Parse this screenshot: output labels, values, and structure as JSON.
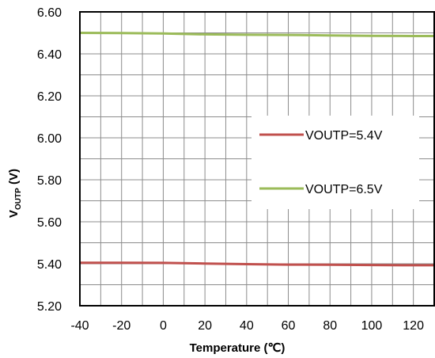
{
  "chart_data": {
    "type": "line",
    "xlabel": "Temperature (℃)",
    "ylabel_main": "V",
    "ylabel_sub": "OUTP",
    "ylabel_unit": " (V)",
    "xlim": [
      -40,
      130
    ],
    "ylim": [
      5.2,
      6.6
    ],
    "x_ticks": [
      -40,
      -20,
      0,
      20,
      40,
      60,
      80,
      100,
      120
    ],
    "y_ticks": [
      "5.20",
      "5.40",
      "5.60",
      "5.80",
      "6.00",
      "6.20",
      "6.40",
      "6.60"
    ],
    "grid": true,
    "legend_position": "right-middle",
    "series": [
      {
        "name": "VOUTP=5.4V",
        "color": "#c0504d",
        "x": [
          -40,
          -20,
          0,
          20,
          40,
          60,
          80,
          100,
          120,
          130
        ],
        "y": [
          5.405,
          5.405,
          5.404,
          5.401,
          5.398,
          5.396,
          5.395,
          5.394,
          5.393,
          5.393
        ]
      },
      {
        "name": "VOUTP=6.5V",
        "color": "#9bbb59",
        "x": [
          -40,
          -20,
          0,
          20,
          40,
          60,
          80,
          100,
          120,
          130
        ],
        "y": [
          6.5,
          6.499,
          6.497,
          6.493,
          6.491,
          6.49,
          6.488,
          6.486,
          6.485,
          6.485
        ]
      }
    ]
  }
}
